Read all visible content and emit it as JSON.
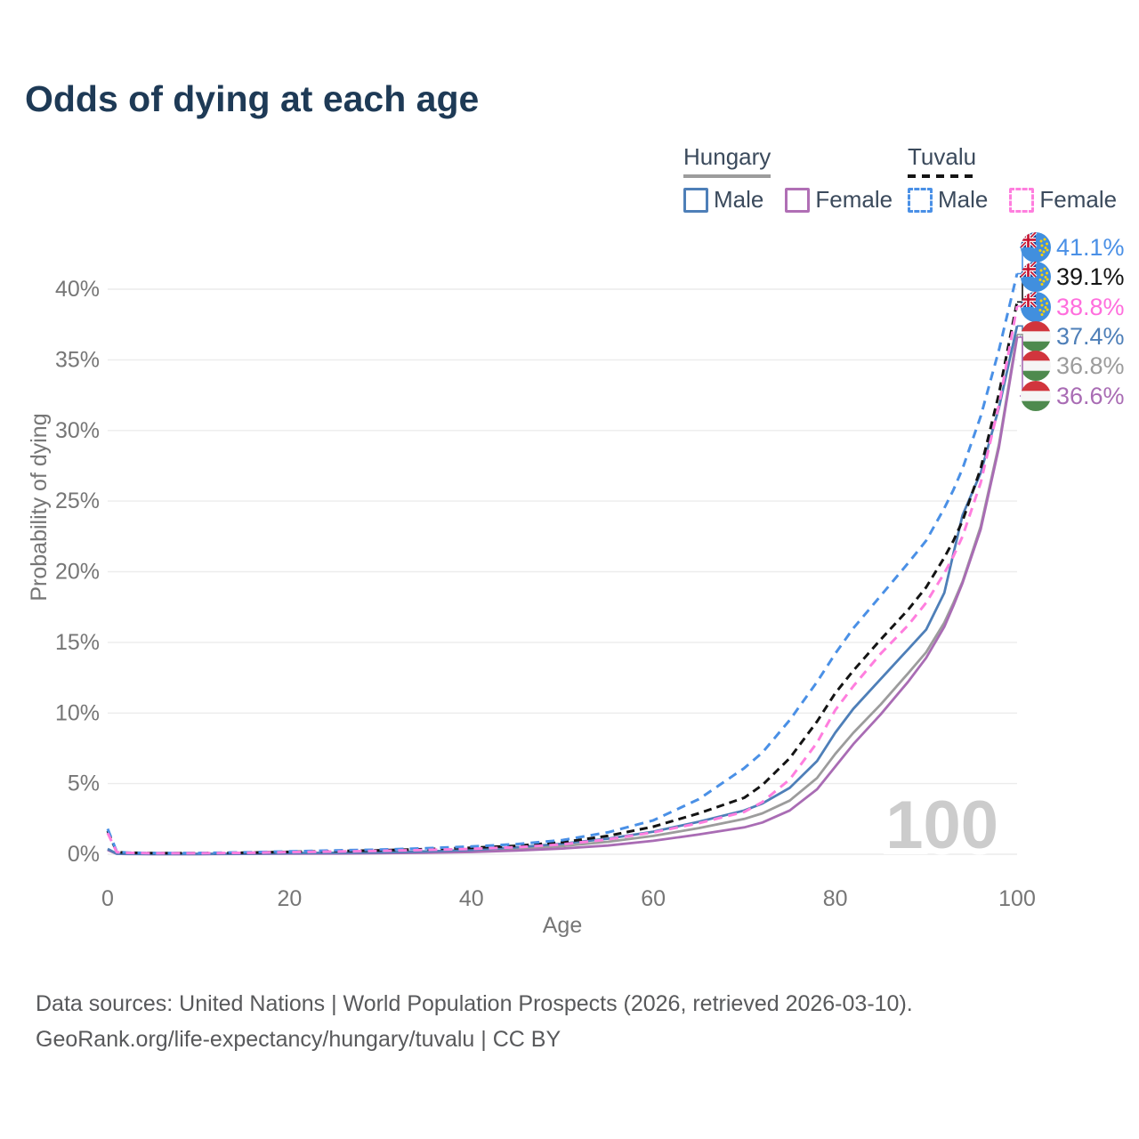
{
  "title": "Odds of dying at each age",
  "watermark": "100",
  "legend": {
    "groups": [
      {
        "id": "hungary",
        "label": "Hungary",
        "line_style": "solid",
        "line_color": "#9c9c9c",
        "items": [
          {
            "id": "male",
            "label": "Male",
            "box_color": "#4e7fb8",
            "box_style": "solid"
          },
          {
            "id": "female",
            "label": "Female",
            "box_color": "#b06fb5",
            "box_style": "solid"
          }
        ]
      },
      {
        "id": "tuvalu",
        "label": "Tuvalu",
        "line_style": "dashed",
        "line_color": "#141414",
        "items": [
          {
            "id": "male",
            "label": "Male",
            "box_color": "#4a90e6",
            "box_style": "dashed"
          },
          {
            "id": "female",
            "label": "Female",
            "box_color": "#ff7ede",
            "box_style": "dashed"
          }
        ]
      }
    ]
  },
  "footer": {
    "line1": "Data sources: United Nations | World Population Prospects (2026, retrieved 2026-03-10).",
    "line2": "GeoRank.org/life-expectancy/hungary/tuvalu | CC BY"
  },
  "chart_data": {
    "type": "line",
    "title": "Odds of dying at each age",
    "xlabel": "Age",
    "ylabel": "Probability of dying",
    "x_ticks": [
      0,
      20,
      40,
      60,
      80,
      100
    ],
    "y_ticks": [
      "0%",
      "5%",
      "10%",
      "15%",
      "20%",
      "25%",
      "30%",
      "35%",
      "40%"
    ],
    "y_tick_values": [
      0,
      5,
      10,
      15,
      20,
      25,
      30,
      35,
      40
    ],
    "xlim": [
      0,
      100
    ],
    "ylim": [
      0,
      43.5
    ],
    "grid": "horizontal",
    "x": [
      0,
      1,
      2,
      5,
      10,
      15,
      20,
      25,
      30,
      35,
      40,
      45,
      50,
      55,
      60,
      65,
      70,
      72,
      75,
      78,
      80,
      82,
      85,
      88,
      90,
      92,
      93,
      94,
      96,
      98,
      100
    ],
    "series": [
      {
        "name": "Tuvalu Male",
        "color": "#4a90e6",
        "dash": "10 7",
        "flag": "tuvalu",
        "end_label": "41.1%",
        "end_label_color": "#4a90e6",
        "values": [
          1.8,
          0.18,
          0.12,
          0.09,
          0.09,
          0.13,
          0.2,
          0.27,
          0.33,
          0.42,
          0.55,
          0.72,
          1.0,
          1.55,
          2.4,
          3.9,
          6.1,
          7.2,
          9.5,
          12.2,
          14.2,
          16.0,
          18.3,
          20.6,
          22.2,
          24.5,
          25.8,
          27.3,
          31.0,
          35.7,
          41.1
        ]
      },
      {
        "name": "Tuvalu Both sexes",
        "color": "#141414",
        "dash": "9 6",
        "flag": "tuvalu",
        "end_label": "39.1%",
        "end_label_color": "#141414",
        "values": [
          1.65,
          0.16,
          0.11,
          0.08,
          0.08,
          0.11,
          0.17,
          0.22,
          0.28,
          0.36,
          0.46,
          0.6,
          0.85,
          1.3,
          1.95,
          2.9,
          4.0,
          4.9,
          6.8,
          9.4,
          11.4,
          13.0,
          15.2,
          17.3,
          18.9,
          21.0,
          22.2,
          23.6,
          27.3,
          32.6,
          39.1
        ]
      },
      {
        "name": "Tuvalu Female",
        "color": "#ff7ede",
        "dash": "10 7",
        "flag": "tuvalu",
        "end_label": "38.8%",
        "end_label_color": "#ff6edd",
        "values": [
          1.5,
          0.15,
          0.1,
          0.07,
          0.07,
          0.1,
          0.15,
          0.19,
          0.24,
          0.3,
          0.38,
          0.5,
          0.7,
          1.05,
          1.55,
          2.2,
          3.0,
          3.7,
          5.3,
          7.9,
          10.2,
          11.9,
          14.2,
          16.2,
          17.8,
          19.9,
          21.1,
          22.5,
          26.3,
          31.8,
          38.8
        ]
      },
      {
        "name": "Hungary Male",
        "color": "#4e7fb8",
        "dash": null,
        "flag": "hungary",
        "end_label": "37.4%",
        "end_label_color": "#4e7fb8",
        "values": [
          0.38,
          0.04,
          0.03,
          0.02,
          0.02,
          0.04,
          0.08,
          0.1,
          0.14,
          0.2,
          0.3,
          0.5,
          0.75,
          1.1,
          1.6,
          2.3,
          3.1,
          3.6,
          4.7,
          6.6,
          8.6,
          10.3,
          12.4,
          14.5,
          15.9,
          18.5,
          21.3,
          24.0,
          27.0,
          31.6,
          37.4
        ]
      },
      {
        "name": "Hungary Both sexes",
        "color": "#9c9c9c",
        "dash": null,
        "flag": "hungary",
        "end_label": "36.8%",
        "end_label_color": "#9c9c9c",
        "values": [
          0.34,
          0.035,
          0.025,
          0.02,
          0.02,
          0.035,
          0.06,
          0.08,
          0.11,
          0.16,
          0.24,
          0.38,
          0.58,
          0.88,
          1.3,
          1.85,
          2.5,
          2.9,
          3.8,
          5.4,
          7.1,
          8.6,
          10.6,
          12.8,
          14.3,
          16.4,
          17.8,
          19.3,
          23.2,
          29.0,
          36.8
        ]
      },
      {
        "name": "Hungary Female",
        "color": "#a96cb4",
        "dash": null,
        "flag": "hungary",
        "end_label": "36.6%",
        "end_label_color": "#a96cb4",
        "values": [
          0.3,
          0.03,
          0.02,
          0.015,
          0.015,
          0.025,
          0.04,
          0.05,
          0.07,
          0.1,
          0.16,
          0.26,
          0.4,
          0.62,
          0.95,
          1.4,
          1.9,
          2.25,
          3.1,
          4.6,
          6.2,
          7.8,
          9.9,
          12.2,
          13.9,
          16.1,
          17.6,
          19.2,
          23.0,
          28.8,
          36.6
        ]
      }
    ],
    "flag_colors": {
      "tuvalu_blue": "#418fde",
      "tuvalu_jack_navy": "#1f3f94",
      "tuvalu_jack_red": "#c8102e",
      "tuvalu_star_gold": "#ffd100",
      "hungary_red": "#d1353d",
      "hungary_white": "#f5f5f5",
      "hungary_green": "#4e8a4e"
    }
  }
}
